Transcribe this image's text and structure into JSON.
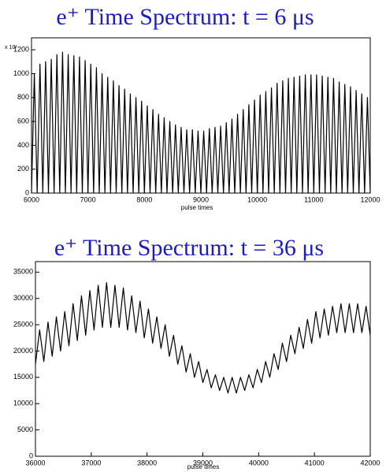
{
  "chart_data": [
    {
      "type": "line",
      "title": "e⁺ Time Spectrum:   t = 6 μs",
      "x_label": "pulse times",
      "y_multiplier": "x 10²",
      "xlim": [
        6000,
        12000
      ],
      "ylim": [
        0,
        1300
      ],
      "xticks": [
        6000,
        7000,
        8000,
        9000,
        10000,
        11000,
        12000
      ],
      "yticks": [
        0,
        200,
        400,
        600,
        800,
        1000,
        1200
      ],
      "series": [
        {
          "color": "#000000",
          "x": [
            6000,
            6050,
            6100,
            6150,
            6200,
            6250,
            6300,
            6350,
            6400,
            6450,
            6500,
            6550,
            6600,
            6650,
            6700,
            6750,
            6800,
            6850,
            6900,
            6950,
            7000,
            7050,
            7100,
            7150,
            7200,
            7250,
            7300,
            7350,
            7400,
            7450,
            7500,
            7550,
            7600,
            7650,
            7700,
            7750,
            7800,
            7850,
            7900,
            7950,
            8000,
            8050,
            8100,
            8150,
            8200,
            8250,
            8300,
            8350,
            8400,
            8450,
            8500,
            8550,
            8600,
            8650,
            8700,
            8750,
            8800,
            8850,
            8900,
            8950,
            9000,
            9050,
            9100,
            9150,
            9200,
            9250,
            9300,
            9350,
            9400,
            9450,
            9500,
            9550,
            9600,
            9650,
            9700,
            9750,
            9800,
            9850,
            9900,
            9950,
            10000,
            10050,
            10100,
            10150,
            10200,
            10250,
            10300,
            10350,
            10400,
            10450,
            10500,
            10550,
            10600,
            10650,
            10700,
            10750,
            10800,
            10850,
            10900,
            10950,
            11000,
            11050,
            11100,
            11150,
            11200,
            11250,
            11300,
            11350,
            11400,
            11450,
            11500,
            11550,
            11600,
            11650,
            11700,
            11750,
            11800,
            11850,
            11900,
            11950,
            12000
          ],
          "values": [
            0,
            1000,
            0,
            1080,
            0,
            1100,
            0,
            1120,
            0,
            1160,
            0,
            1180,
            0,
            1160,
            0,
            1150,
            0,
            1140,
            0,
            1110,
            0,
            1080,
            0,
            1050,
            0,
            1000,
            0,
            970,
            0,
            940,
            0,
            900,
            0,
            870,
            0,
            830,
            0,
            800,
            0,
            770,
            0,
            730,
            0,
            700,
            0,
            660,
            0,
            630,
            0,
            600,
            0,
            570,
            0,
            550,
            0,
            530,
            0,
            530,
            0,
            520,
            0,
            520,
            0,
            540,
            0,
            550,
            0,
            560,
            0,
            590,
            0,
            620,
            0,
            660,
            0,
            700,
            0,
            740,
            0,
            780,
            0,
            820,
            0,
            850,
            0,
            880,
            0,
            920,
            0,
            940,
            0,
            960,
            0,
            970,
            0,
            980,
            0,
            990,
            0,
            990,
            0,
            990,
            0,
            980,
            0,
            970,
            0,
            960,
            0,
            930,
            0,
            910,
            0,
            890,
            0,
            860,
            0,
            830,
            0,
            800,
            0
          ]
        }
      ]
    },
    {
      "type": "line",
      "title": "e⁺ Time Spectrum:   t =  36  μs",
      "x_label": "pulse times",
      "xlim": [
        36000,
        42000
      ],
      "ylim": [
        0,
        37000
      ],
      "xticks": [
        36000,
        37000,
        38000,
        39000,
        40000,
        41000,
        42000
      ],
      "yticks": [
        0,
        5000,
        10000,
        15000,
        20000,
        25000,
        30000,
        35000
      ],
      "series": [
        {
          "color": "#000000",
          "x": [
            36000,
            36075,
            36150,
            36225,
            36300,
            36375,
            36450,
            36525,
            36600,
            36675,
            36750,
            36825,
            36900,
            36975,
            37050,
            37125,
            37200,
            37275,
            37350,
            37425,
            37500,
            37575,
            37650,
            37725,
            37800,
            37875,
            37950,
            38025,
            38100,
            38175,
            38250,
            38325,
            38400,
            38475,
            38550,
            38625,
            38700,
            38775,
            38850,
            38925,
            39000,
            39075,
            39150,
            39225,
            39300,
            39375,
            39450,
            39525,
            39600,
            39675,
            39750,
            39825,
            39900,
            39975,
            40050,
            40125,
            40200,
            40275,
            40350,
            40425,
            40500,
            40575,
            40650,
            40725,
            40800,
            40875,
            40950,
            41025,
            41100,
            41175,
            41250,
            41325,
            41400,
            41475,
            41550,
            41625,
            41700,
            41775,
            41850,
            41925,
            42000
          ],
          "values": [
            17500,
            24000,
            18000,
            25500,
            19000,
            26500,
            20000,
            27500,
            21000,
            29000,
            22000,
            30500,
            23000,
            31500,
            24000,
            32500,
            24500,
            33000,
            24500,
            32500,
            24500,
            32000,
            24000,
            30500,
            23500,
            29500,
            22500,
            28000,
            21500,
            26500,
            20500,
            25000,
            19000,
            23000,
            17500,
            21000,
            16000,
            19500,
            15000,
            18000,
            14000,
            16500,
            13000,
            15500,
            12500,
            15000,
            12000,
            15000,
            12000,
            15000,
            12500,
            15500,
            13000,
            16500,
            14000,
            18000,
            15000,
            19500,
            16500,
            21500,
            18000,
            23000,
            19500,
            24500,
            20500,
            26000,
            21500,
            27500,
            22500,
            28000,
            23000,
            28500,
            23500,
            29000,
            23500,
            29000,
            23500,
            29000,
            23500,
            28500,
            23000
          ]
        }
      ]
    }
  ]
}
